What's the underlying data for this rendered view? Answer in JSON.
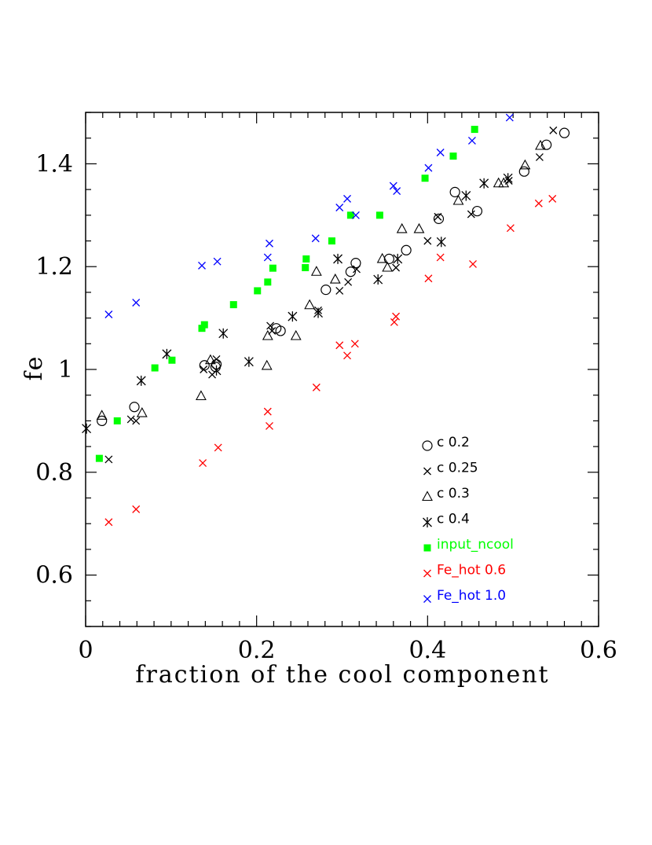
{
  "chart_data": {
    "type": "scatter",
    "xlabel": "fraction of the cool component",
    "ylabel": "fe",
    "xlim": [
      0,
      0.6
    ],
    "ylim": [
      0.5,
      1.5
    ],
    "x_ticks": [
      0,
      0.2,
      0.4,
      0.6
    ],
    "x_tick_labels": [
      "0",
      "0.2",
      "0.4",
      "0.6"
    ],
    "y_ticks": [
      0.6,
      0.8,
      1.0,
      1.2,
      1.4
    ],
    "y_tick_labels": [
      "0.6",
      "0.8",
      "1",
      "1.2",
      "1.4"
    ],
    "x_minor_step": 0.02,
    "y_minor_step": 0.05,
    "legend_position": "bottom-right",
    "series": [
      {
        "name": "c 0.2",
        "marker": "circle",
        "color": "#000000",
        "points": [
          [
            0.019,
            0.9
          ],
          [
            0.057,
            0.927
          ],
          [
            0.139,
            1.008
          ],
          [
            0.153,
            1.01
          ],
          [
            0.152,
            1.005
          ],
          [
            0.223,
            1.08
          ],
          [
            0.228,
            1.075
          ],
          [
            0.281,
            1.155
          ],
          [
            0.31,
            1.19
          ],
          [
            0.316,
            1.207
          ],
          [
            0.355,
            1.215
          ],
          [
            0.375,
            1.232
          ],
          [
            0.413,
            1.293
          ],
          [
            0.432,
            1.345
          ],
          [
            0.458,
            1.308
          ],
          [
            0.513,
            1.385
          ],
          [
            0.539,
            1.437
          ],
          [
            0.56,
            1.46
          ]
        ]
      },
      {
        "name": "c 0.25",
        "marker": "cross",
        "color": "#000000",
        "points": [
          [
            0.027,
            0.825
          ],
          [
            0.053,
            0.903
          ],
          [
            0.059,
            0.9
          ],
          [
            0.138,
            1.0
          ],
          [
            0.148,
            0.99
          ],
          [
            0.153,
            1.02
          ],
          [
            0.218,
            1.075
          ],
          [
            0.216,
            1.085
          ],
          [
            0.272,
            1.115
          ],
          [
            0.297,
            1.153
          ],
          [
            0.307,
            1.17
          ],
          [
            0.317,
            1.195
          ],
          [
            0.363,
            1.198
          ],
          [
            0.4,
            1.25
          ],
          [
            0.412,
            1.297
          ],
          [
            0.451,
            1.302
          ],
          [
            0.495,
            1.367
          ],
          [
            0.531,
            1.413
          ],
          [
            0.547,
            1.465
          ]
        ]
      },
      {
        "name": "c 0.3",
        "marker": "triangle",
        "color": "#000000",
        "points": [
          [
            0.019,
            0.91
          ],
          [
            0.066,
            0.915
          ],
          [
            0.135,
            0.948
          ],
          [
            0.146,
            1.018
          ],
          [
            0.213,
            1.065
          ],
          [
            0.212,
            1.007
          ],
          [
            0.246,
            1.065
          ],
          [
            0.262,
            1.125
          ],
          [
            0.27,
            1.19
          ],
          [
            0.292,
            1.175
          ],
          [
            0.347,
            1.215
          ],
          [
            0.353,
            1.198
          ],
          [
            0.37,
            1.273
          ],
          [
            0.39,
            1.273
          ],
          [
            0.436,
            1.328
          ],
          [
            0.483,
            1.362
          ],
          [
            0.489,
            1.362
          ],
          [
            0.514,
            1.397
          ],
          [
            0.532,
            1.435
          ]
        ]
      },
      {
        "name": "c 0.4",
        "marker": "star",
        "color": "#000000",
        "points": [
          [
            0.001,
            0.885
          ],
          [
            0.065,
            0.978
          ],
          [
            0.095,
            1.03
          ],
          [
            0.153,
            0.998
          ],
          [
            0.161,
            1.07
          ],
          [
            0.191,
            1.015
          ],
          [
            0.242,
            1.103
          ],
          [
            0.272,
            1.11
          ],
          [
            0.295,
            1.215
          ],
          [
            0.342,
            1.175
          ],
          [
            0.365,
            1.215
          ],
          [
            0.416,
            1.248
          ],
          [
            0.445,
            1.338
          ],
          [
            0.466,
            1.362
          ],
          [
            0.494,
            1.372
          ]
        ]
      },
      {
        "name": "input_ncool",
        "marker": "square",
        "color": "#00ff00",
        "points": [
          [
            0.016,
            0.827
          ],
          [
            0.037,
            0.9
          ],
          [
            0.081,
            1.003
          ],
          [
            0.101,
            1.018
          ],
          [
            0.136,
            1.08
          ],
          [
            0.139,
            1.087
          ],
          [
            0.173,
            1.126
          ],
          [
            0.201,
            1.153
          ],
          [
            0.213,
            1.17
          ],
          [
            0.219,
            1.197
          ],
          [
            0.257,
            1.198
          ],
          [
            0.258,
            1.215
          ],
          [
            0.288,
            1.25
          ],
          [
            0.31,
            1.3
          ],
          [
            0.344,
            1.3
          ],
          [
            0.397,
            1.372
          ],
          [
            0.43,
            1.415
          ],
          [
            0.455,
            1.467
          ]
        ]
      },
      {
        "name": "Fe_hot 0.6",
        "marker": "cross",
        "color": "#ff0000",
        "points": [
          [
            0.027,
            0.703
          ],
          [
            0.059,
            0.728
          ],
          [
            0.137,
            0.818
          ],
          [
            0.155,
            0.848
          ],
          [
            0.213,
            0.918
          ],
          [
            0.215,
            0.89
          ],
          [
            0.27,
            0.965
          ],
          [
            0.297,
            1.047
          ],
          [
            0.306,
            1.027
          ],
          [
            0.315,
            1.05
          ],
          [
            0.361,
            1.092
          ],
          [
            0.363,
            1.103
          ],
          [
            0.401,
            1.177
          ],
          [
            0.415,
            1.218
          ],
          [
            0.453,
            1.205
          ],
          [
            0.497,
            1.275
          ],
          [
            0.53,
            1.323
          ],
          [
            0.546,
            1.332
          ]
        ]
      },
      {
        "name": "Fe_hot 1.0",
        "marker": "cross",
        "color": "#0000ff",
        "points": [
          [
            0.027,
            1.107
          ],
          [
            0.059,
            1.13
          ],
          [
            0.136,
            1.202
          ],
          [
            0.154,
            1.21
          ],
          [
            0.213,
            1.218
          ],
          [
            0.215,
            1.245
          ],
          [
            0.269,
            1.255
          ],
          [
            0.297,
            1.315
          ],
          [
            0.306,
            1.332
          ],
          [
            0.316,
            1.3
          ],
          [
            0.36,
            1.357
          ],
          [
            0.364,
            1.347
          ],
          [
            0.401,
            1.392
          ],
          [
            0.415,
            1.422
          ],
          [
            0.452,
            1.445
          ],
          [
            0.496,
            1.49
          ]
        ]
      }
    ]
  }
}
